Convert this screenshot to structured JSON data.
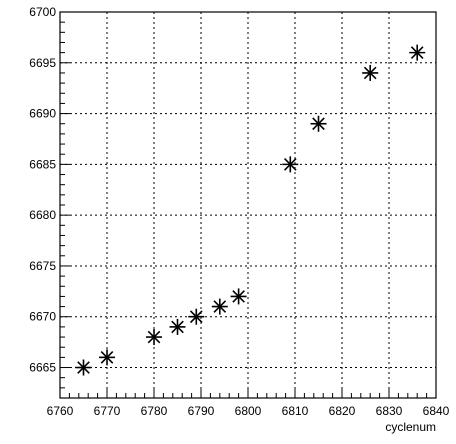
{
  "chart_data": {
    "type": "scatter",
    "title": "",
    "xlabel": "cyclenum",
    "ylabel": "",
    "xlim": [
      6760,
      6840
    ],
    "ylim": [
      6662,
      6700
    ],
    "x_ticks": [
      6760,
      6770,
      6780,
      6790,
      6800,
      6810,
      6820,
      6830,
      6840
    ],
    "y_ticks": [
      6665,
      6670,
      6675,
      6680,
      6685,
      6690,
      6695,
      6700
    ],
    "grid": true,
    "marker": "asterisk",
    "series": [
      {
        "points": [
          {
            "x": 6765,
            "y": 6665
          },
          {
            "x": 6770,
            "y": 6666
          },
          {
            "x": 6780,
            "y": 6668
          },
          {
            "x": 6785,
            "y": 6669
          },
          {
            "x": 6789,
            "y": 6670
          },
          {
            "x": 6794,
            "y": 6671
          },
          {
            "x": 6798,
            "y": 6672
          },
          {
            "x": 6809,
            "y": 6685
          },
          {
            "x": 6815,
            "y": 6689
          },
          {
            "x": 6826,
            "y": 6694
          },
          {
            "x": 6836,
            "y": 6696
          }
        ]
      }
    ]
  }
}
